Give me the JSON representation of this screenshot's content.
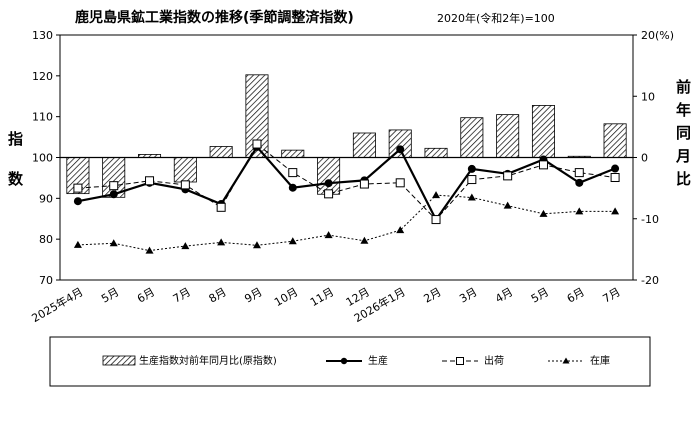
{
  "chart_data": {
    "type": "bar",
    "title": "鹿児島県鉱工業指数の推移(季節調整済指数)",
    "base_note": "2020年(令和2年)=100",
    "categories": [
      "2025年4月",
      "5月",
      "6月",
      "7月",
      "8月",
      "9月",
      "10月",
      "11月",
      "12月",
      "2026年1月",
      "2月",
      "3月",
      "4月",
      "5月",
      "6月",
      "7月"
    ],
    "left_axis": {
      "label_chars": [
        "指",
        "数"
      ],
      "min": 70,
      "max": 130,
      "ticks": [
        70,
        80,
        90,
        100,
        110,
        120,
        130
      ]
    },
    "right_axis": {
      "label_chars": [
        "前",
        "年",
        "同",
        "月",
        "比"
      ],
      "unit": "(%)",
      "min": -20,
      "max": 20,
      "ticks": [
        -20,
        -10,
        0,
        10,
        20
      ]
    },
    "series": [
      {
        "name": "生産指数対前年同月比(原指数)",
        "kind": "bar",
        "axis": "right",
        "values": [
          -5.9,
          -6.5,
          0.5,
          -4.0,
          1.8,
          13.5,
          1.2,
          -6.0,
          4.0,
          4.5,
          1.5,
          6.5,
          7.0,
          8.5,
          0.2,
          5.5
        ]
      },
      {
        "name": "生産",
        "kind": "line-solid",
        "axis": "left",
        "values": [
          89.3,
          91.0,
          93.8,
          92.2,
          88.6,
          102.6,
          92.6,
          93.7,
          94.4,
          102.0,
          84.8,
          97.2,
          96.0,
          99.5,
          93.8,
          97.3
        ]
      },
      {
        "name": "出荷",
        "kind": "line-dashed-square",
        "axis": "left",
        "values": [
          92.5,
          93.1,
          94.3,
          93.3,
          87.8,
          103.3,
          96.3,
          91.1,
          93.5,
          93.8,
          84.8,
          94.6,
          95.5,
          98.2,
          96.3,
          95.1
        ]
      },
      {
        "name": "在庫",
        "kind": "line-dotted-triangle",
        "axis": "left",
        "values": [
          78.6,
          79.0,
          77.2,
          78.3,
          79.2,
          78.5,
          79.5,
          81.0,
          79.6,
          82.2,
          90.8,
          90.2,
          88.2,
          86.2,
          86.8,
          86.8
        ]
      }
    ],
    "legend_position": "bottom",
    "grid": false
  }
}
